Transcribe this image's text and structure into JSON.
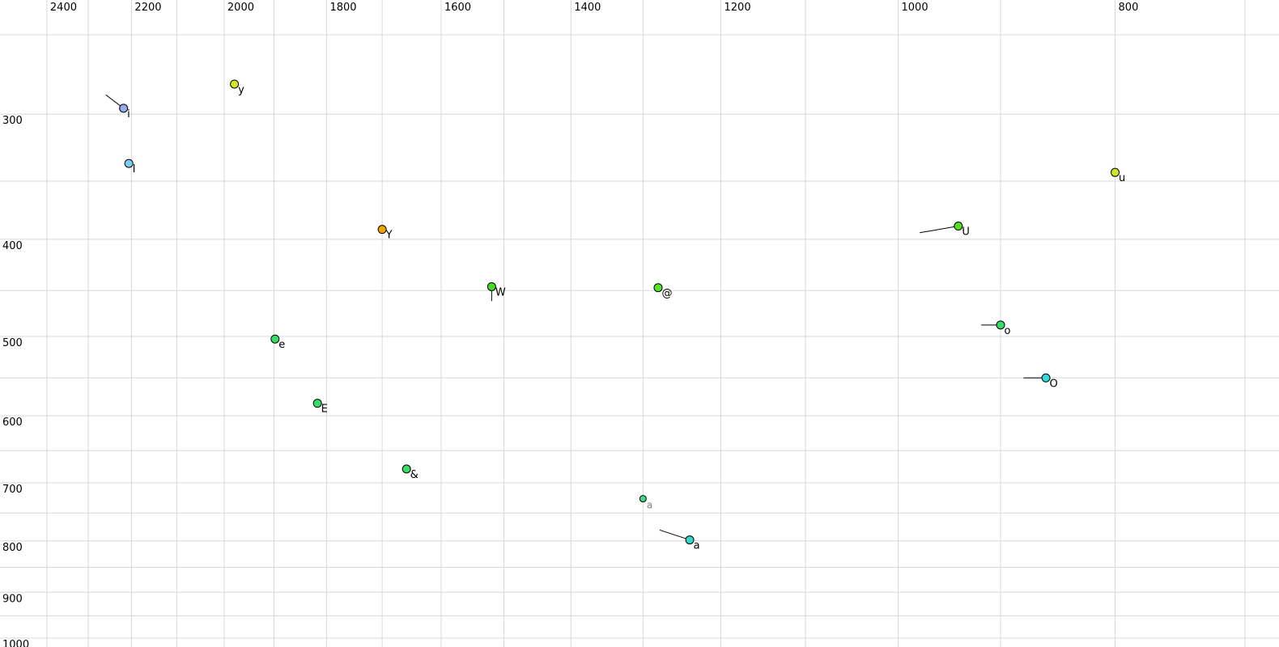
{
  "chart_data": {
    "type": "scatter",
    "title": "",
    "xlabel": "",
    "ylabel": "",
    "x_axis": {
      "unit": "Hz",
      "scale": "log",
      "position": "top",
      "direction": "values-decrease-rightward",
      "tick_labels": [
        "2400",
        "2200",
        "2000",
        "1800",
        "1600",
        "1400",
        "1200",
        "1000",
        "800"
      ],
      "tick_values": [
        2400,
        2200,
        2000,
        1800,
        1600,
        1400,
        1200,
        1000,
        800
      ],
      "grid_values": [
        2400,
        2300,
        2200,
        2100,
        2000,
        1900,
        1800,
        1700,
        1600,
        1500,
        1400,
        1300,
        1200,
        1100,
        1000,
        900,
        800,
        700
      ],
      "range_visible": [
        2520,
        675
      ]
    },
    "y_axis": {
      "unit": "Hz",
      "scale": "log",
      "position": "left",
      "direction": "values-increase-downward",
      "tick_labels": [
        "300",
        "400",
        "500",
        "600",
        "700",
        "800",
        "900",
        "1000"
      ],
      "tick_values": [
        300,
        400,
        500,
        600,
        700,
        800,
        900,
        1000
      ],
      "grid_values": [
        250,
        300,
        350,
        400,
        450,
        500,
        550,
        600,
        650,
        700,
        750,
        800,
        850,
        900,
        950,
        1000
      ],
      "range_visible": [
        231,
        1021
      ]
    },
    "grid": "on",
    "legend": "none",
    "points": [
      {
        "label": "i",
        "f2": 2218,
        "f1": 296,
        "color": "#99aaee",
        "trail": {
          "f2": 2259,
          "f1": 287
        }
      },
      {
        "label": "I",
        "f2": 2206,
        "f1": 336,
        "color": "#80ccf0"
      },
      {
        "label": "y",
        "f2": 1979,
        "f1": 280,
        "color": "#d8e628"
      },
      {
        "label": "Y",
        "f2": 1700,
        "f1": 391,
        "color": "#f0a202"
      },
      {
        "label": "e",
        "f2": 1898,
        "f1": 503,
        "color": "#33dd66"
      },
      {
        "label": "E",
        "f2": 1817,
        "f1": 583,
        "color": "#33dd66"
      },
      {
        "label": "&",
        "f2": 1658,
        "f1": 678,
        "color": "#33dd66"
      },
      {
        "label": "W",
        "f2": 1519,
        "f1": 446,
        "color": "#44dd22",
        "trail": {
          "f2": 1519,
          "f1": 461
        }
      },
      {
        "label": "@",
        "f2": 1280,
        "f1": 447,
        "color": "#55e528"
      },
      {
        "label": "a",
        "f2": 1300,
        "f1": 726,
        "color": "#44d88a",
        "small": true,
        "label_color": "#808080",
        "trail": {
          "f2": 1300,
          "f1": 731
        }
      },
      {
        "label": "a",
        "f2": 1239,
        "f1": 798,
        "color": "#33d8cc",
        "trail": {
          "f2": 1278,
          "f1": 780
        }
      },
      {
        "label": "u",
        "f2": 800,
        "f1": 343,
        "color": "#cce622"
      },
      {
        "label": "U",
        "f2": 940,
        "f1": 388,
        "color": "#55dd22",
        "trail": {
          "f2": 978,
          "f1": 394
        }
      },
      {
        "label": "o",
        "f2": 900,
        "f1": 487,
        "color": "#33dd66",
        "trail": {
          "f2": 918,
          "f1": 487
        }
      },
      {
        "label": "O",
        "f2": 859,
        "f1": 550,
        "color": "#33d8d8",
        "trail": {
          "f2": 879,
          "f1": 550
        }
      }
    ]
  },
  "colors": {
    "background": "#ffffff",
    "grid": "#d8d8d8",
    "tick_label": "#000000",
    "point_stroke": "#000000",
    "trail": "#000000",
    "point_label": "#000000"
  }
}
